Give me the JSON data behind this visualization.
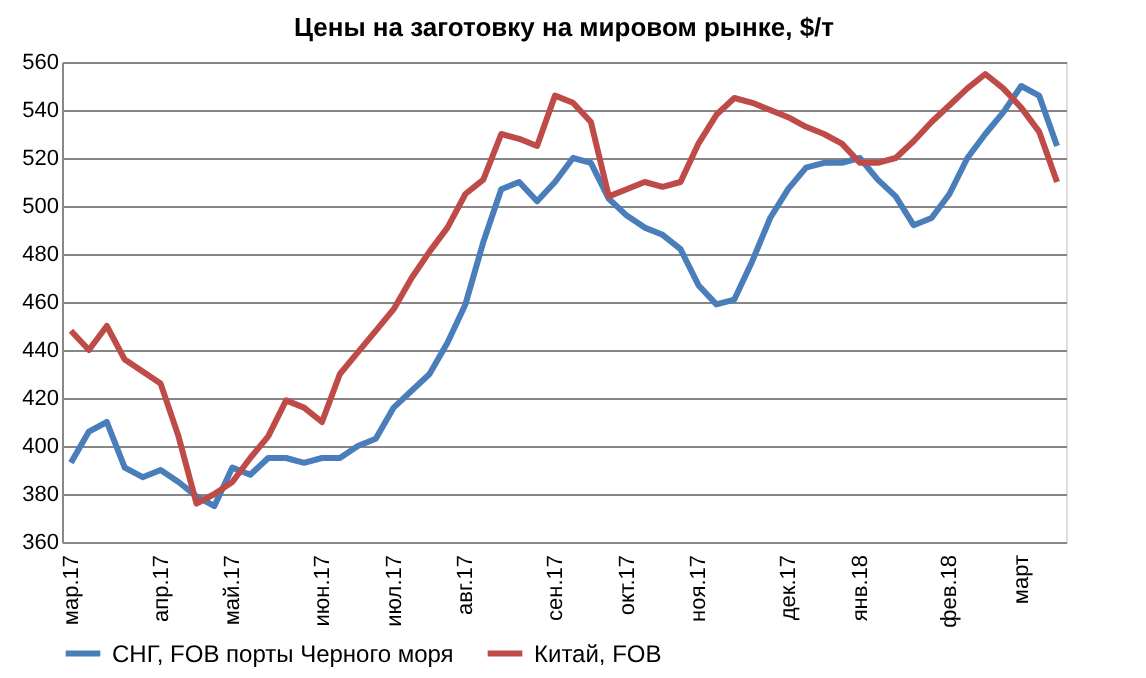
{
  "chart_data": {
    "type": "line",
    "title": "Цены на заготовку на мировом рынке, $/т",
    "categories": [
      "мар.17",
      null,
      null,
      null,
      null,
      "апр.17",
      null,
      null,
      null,
      "май.17",
      null,
      null,
      null,
      null,
      "июн.17",
      null,
      null,
      null,
      "июл.17",
      null,
      null,
      null,
      "авг.17",
      null,
      null,
      null,
      null,
      "сен.17",
      null,
      null,
      null,
      "окт.17",
      null,
      null,
      null,
      "ноя.17",
      null,
      null,
      null,
      null,
      "дек.17",
      null,
      null,
      null,
      "янв.18",
      null,
      null,
      null,
      null,
      "фев.18",
      null,
      null,
      null,
      "март",
      null,
      null
    ],
    "series": [
      {
        "name": "СНГ, FOB порты Черного моря",
        "color": "#4a7ebb",
        "values": [
          393,
          406,
          410,
          391,
          387,
          390,
          385,
          379,
          375,
          391,
          388,
          395,
          395,
          393,
          395,
          395,
          400,
          403,
          416,
          423,
          430,
          443,
          459,
          485,
          507,
          510,
          502,
          510,
          520,
          518,
          503,
          496,
          491,
          488,
          482,
          467,
          459,
          461,
          477,
          495,
          507,
          516,
          518,
          518,
          520,
          511,
          504,
          492,
          495,
          505,
          520,
          530,
          539,
          550,
          546,
          525
        ]
      },
      {
        "name": "Китай, FOB",
        "color": "#be4b48",
        "values": [
          448,
          440,
          450,
          436,
          431,
          426,
          404,
          376,
          380,
          385,
          395,
          404,
          419,
          416,
          410,
          430,
          439,
          448,
          457,
          470,
          481,
          491,
          505,
          511,
          530,
          528,
          525,
          546,
          543,
          535,
          504,
          507,
          510,
          508,
          510,
          526,
          538,
          545,
          543,
          540,
          537,
          533,
          530,
          526,
          518,
          518,
          520,
          527,
          535,
          542,
          549,
          555,
          549,
          541,
          531,
          510
        ]
      }
    ],
    "ylim": [
      360,
      560
    ],
    "yticks": [
      360,
      380,
      400,
      420,
      440,
      460,
      480,
      500,
      520,
      540,
      560
    ],
    "grid": "y",
    "legend": "bottom",
    "marker": "none",
    "line_style": "solid"
  }
}
